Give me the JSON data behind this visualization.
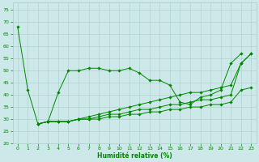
{
  "background_color": "#cce8e8",
  "grid_color": "#aacccc",
  "line_color": "#008800",
  "marker_color": "#008800",
  "xlabel": "Humidité relative (%)",
  "xlabel_color": "#008800",
  "tick_color": "#008800",
  "xlim": [
    -0.5,
    23.5
  ],
  "ylim": [
    20,
    78
  ],
  "yticks": [
    20,
    25,
    30,
    35,
    40,
    45,
    50,
    55,
    60,
    65,
    70,
    75
  ],
  "xticks": [
    0,
    1,
    2,
    3,
    4,
    5,
    6,
    7,
    8,
    9,
    10,
    11,
    12,
    13,
    14,
    15,
    16,
    17,
    18,
    19,
    20,
    21,
    22,
    23
  ],
  "series": [
    [
      68,
      42,
      28,
      29,
      41,
      50,
      50,
      51,
      51,
      50,
      50,
      51,
      49,
      46,
      46,
      44,
      37,
      36,
      39,
      40,
      42,
      53,
      57,
      null
    ],
    [
      null,
      null,
      28,
      29,
      29,
      29,
      30,
      31,
      32,
      33,
      34,
      35,
      36,
      37,
      38,
      39,
      40,
      41,
      41,
      42,
      43,
      44,
      53,
      57
    ],
    [
      null,
      null,
      28,
      29,
      29,
      29,
      30,
      30,
      31,
      32,
      32,
      33,
      34,
      34,
      35,
      36,
      36,
      37,
      38,
      38,
      39,
      40,
      53,
      57
    ],
    [
      null,
      null,
      28,
      29,
      29,
      29,
      30,
      30,
      30,
      31,
      31,
      32,
      32,
      33,
      33,
      34,
      34,
      35,
      35,
      36,
      36,
      37,
      42,
      43
    ]
  ],
  "x_values": [
    0,
    1,
    2,
    3,
    4,
    5,
    6,
    7,
    8,
    9,
    10,
    11,
    12,
    13,
    14,
    15,
    16,
    17,
    18,
    19,
    20,
    21,
    22,
    23
  ]
}
